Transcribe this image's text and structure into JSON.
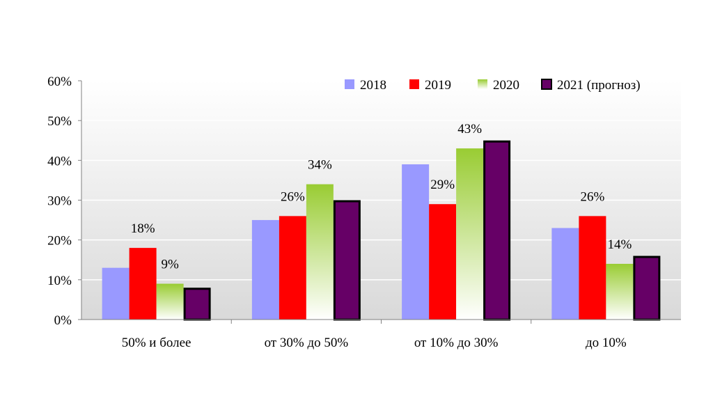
{
  "chart_data": {
    "type": "bar",
    "title": "",
    "xlabel": "",
    "ylabel": "",
    "categories": [
      "50% и более",
      "от 30% до 50%",
      "от 10% до 30%",
      "до 10%"
    ],
    "series": [
      {
        "name": "2018",
        "values": [
          13,
          25,
          39,
          23
        ],
        "color": "#9999ff",
        "style": "solid",
        "labels": [
          null,
          null,
          null,
          null
        ]
      },
      {
        "name": "2019",
        "values": [
          18,
          26,
          29,
          26
        ],
        "color": "#ff0000",
        "style": "solid",
        "labels": [
          "18%",
          "26%",
          "29%",
          "26%"
        ]
      },
      {
        "name": "2020",
        "values": [
          9,
          34,
          43,
          14
        ],
        "color": "#99cc33",
        "style": "gradient",
        "labels": [
          "9%",
          "34%",
          "43%",
          "14%"
        ]
      },
      {
        "name": "2021 (прогноз)",
        "values": [
          8,
          30,
          45,
          16
        ],
        "color": "#660066",
        "style": "outlined",
        "labels": [
          null,
          null,
          null,
          null
        ]
      }
    ],
    "ylim": [
      0,
      60
    ],
    "yticks": [
      0,
      10,
      20,
      30,
      40,
      50,
      60
    ],
    "ytick_labels": [
      "0%",
      "10%",
      "20%",
      "30%",
      "40%",
      "50%",
      "60%"
    ],
    "grid": true,
    "legend": "top-right",
    "plot_background": "gradient grey",
    "colors": {
      "gridline": "#ffffff",
      "axis": "#808080",
      "bg_top": "#ffffff",
      "bg_bottom": "#d9d9d9"
    }
  }
}
